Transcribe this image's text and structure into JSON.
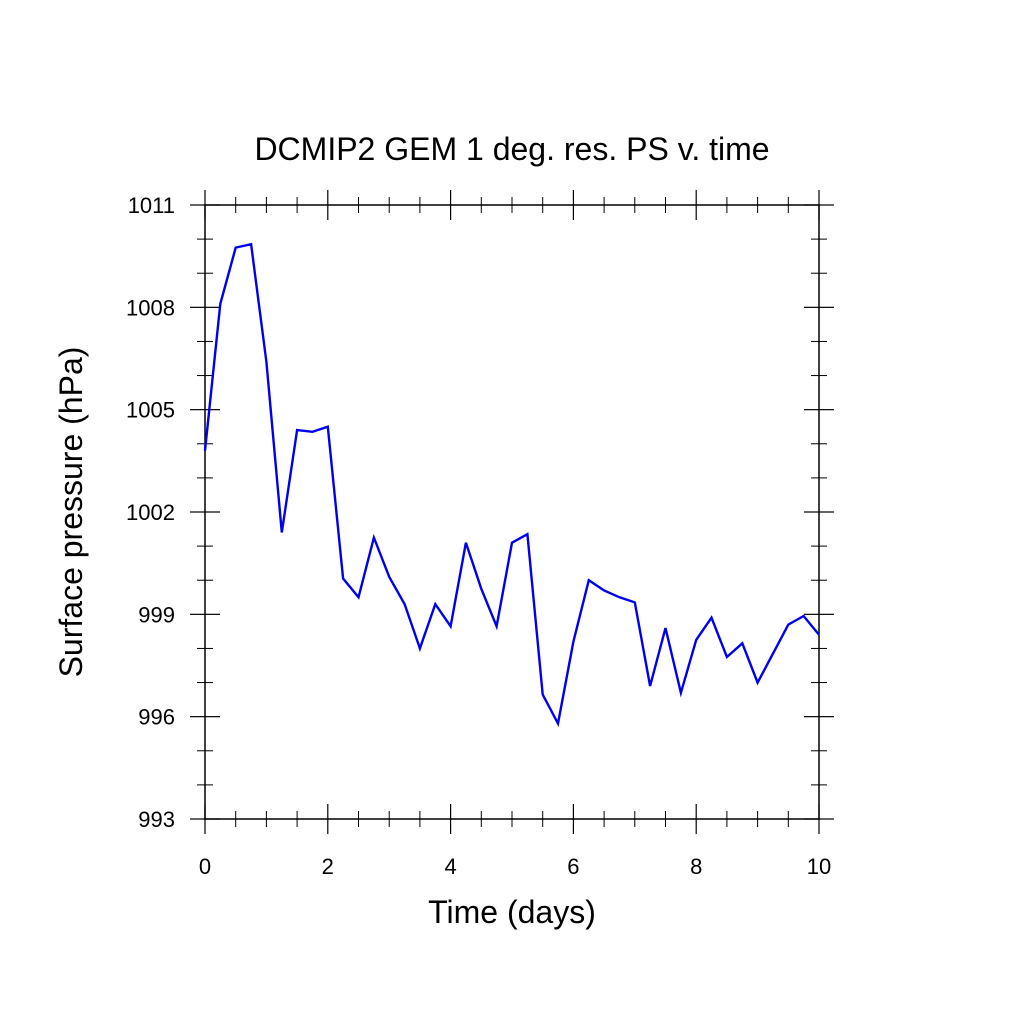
{
  "chart_data": {
    "type": "line",
    "title": "DCMIP2 GEM 1 deg. res. PS v. time",
    "xlabel": "Time (days)",
    "ylabel": "Surface pressure (hPa)",
    "xlim": [
      0,
      10
    ],
    "ylim": [
      993,
      1011
    ],
    "xticks": [
      0,
      2,
      4,
      6,
      8,
      10
    ],
    "xtick_labels": [
      "0",
      "2",
      "4",
      "6",
      "8",
      "10"
    ],
    "yticks": [
      993,
      996,
      999,
      1002,
      1005,
      1008,
      1011
    ],
    "ytick_labels": [
      "993",
      "996",
      "999",
      "1002",
      "1005",
      "1008",
      "1011"
    ],
    "grid": false,
    "legend": "none",
    "line_color": "#0000ee",
    "series": [
      {
        "x": [
          0,
          0.25,
          0.5,
          0.75,
          1.0,
          1.25,
          1.5,
          1.75,
          2.0,
          2.25,
          2.5,
          2.75,
          3.0,
          3.25,
          3.5,
          3.75,
          4.0,
          4.25,
          4.5,
          4.75,
          5.0,
          5.25,
          5.5,
          5.75,
          6.0,
          6.25,
          6.5,
          6.75,
          7.0,
          7.25,
          7.5,
          7.75,
          8.0,
          8.25,
          8.5,
          8.75,
          9.0,
          9.25,
          9.5,
          9.75,
          10.0
        ],
        "values": [
          1003.8,
          1008.1,
          1009.75,
          1009.85,
          1006.4,
          1001.4,
          1004.4,
          1004.35,
          1004.5,
          1000.05,
          999.5,
          1001.25,
          1000.1,
          999.3,
          998.0,
          999.3,
          998.65,
          1001.1,
          999.75,
          998.65,
          1001.1,
          1001.35,
          996.65,
          995.8,
          998.2,
          1000.0,
          999.7,
          999.5,
          999.35,
          996.9,
          998.6,
          996.7,
          998.25,
          998.9,
          997.75,
          998.15,
          997.0,
          997.85,
          998.7,
          998.95,
          998.4
        ]
      }
    ]
  }
}
